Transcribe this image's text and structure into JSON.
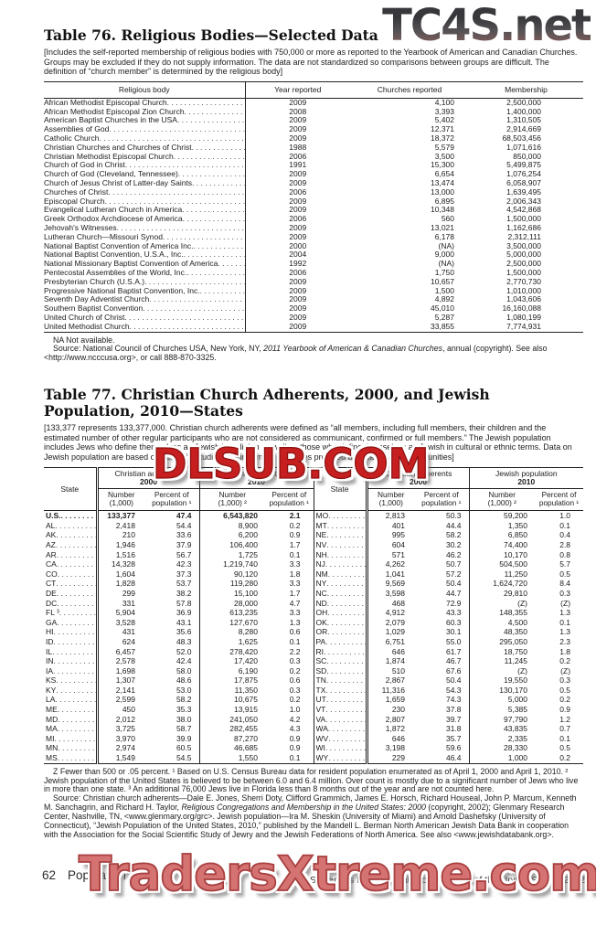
{
  "watermarks": {
    "top_right": "TC4S.net",
    "middle": "DLSUB.COM",
    "bottom": "TradersXtreme.com"
  },
  "table76": {
    "title": "Table 76. Religious Bodies—Selected Data",
    "note": "[Includes the self-reported membership of religious bodies with 750,000 or more as reported to the Yearbook of American and Canadian Churches. Groups may be excluded if they do not supply information. The data are not standardized so comparisons between groups are difficult. The definition of “church member” is determined by the religious body]",
    "columns": [
      "Religious body",
      "Year reported",
      "Churches reported",
      "Membership"
    ],
    "rows": [
      [
        "African Methodist Episcopal Church",
        "2009",
        "4,100",
        "2,500,000"
      ],
      [
        "African Methodist Episcopal Zion Church",
        "2008",
        "3,393",
        "1,400,000"
      ],
      [
        "American Baptist Churches in the USA",
        "2009",
        "5,402",
        "1,310,505"
      ],
      [
        "Assemblies of God",
        "2009",
        "12,371",
        "2,914,669"
      ],
      [
        "Catholic Church",
        "2009",
        "18,372",
        "68,503,456"
      ],
      [
        "Christian Churches and Churches of Christ",
        "1988",
        "5,579",
        "1,071,616"
      ],
      [
        "Christian Methodist Episcopal Church",
        "2006",
        "3,500",
        "850,000"
      ],
      [
        "Church of God in Christ",
        "1991",
        "15,300",
        "5,499,875"
      ],
      [
        "Church of God (Cleveland, Tennessee)",
        "2009",
        "6,654",
        "1,076,254"
      ],
      [
        "Church of Jesus Christ of Latter-day Saints",
        "2009",
        "13,474",
        "6,058,907"
      ],
      [
        "Churches of Christ",
        "2006",
        "13,000",
        "1,639,495"
      ],
      [
        "Episcopal Church",
        "2009",
        "6,895",
        "2,006,343"
      ],
      [
        "Evangelical Lutheran Church in America",
        "2009",
        "10,348",
        "4,542,868"
      ],
      [
        "Greek Orthodox Archdiocese of America",
        "2006",
        "560",
        "1,500,000"
      ],
      [
        "Jehovah's Witnesses",
        "2009",
        "13,021",
        "1,162,686"
      ],
      [
        "Lutheran Church—Missouri Synod",
        "2009",
        "6,178",
        "2,312,111"
      ],
      [
        "National Baptist Convention of America Inc.",
        "2000",
        "(NA)",
        "3,500,000"
      ],
      [
        "National Baptist Convention, U.S.A., Inc.",
        "2004",
        "9,000",
        "5,000,000"
      ],
      [
        "National Missionary Baptist Convention of America",
        "1992",
        "(NA)",
        "2,500,000"
      ],
      [
        "Pentecostal Assemblies of the World, Inc.",
        "2006",
        "1,750",
        "1,500,000"
      ],
      [
        "Presbyterian Church (U.S.A.)",
        "2009",
        "10,657",
        "2,770,730"
      ],
      [
        "Progressive National Baptist Convention, Inc.",
        "2009",
        "1,500",
        "1,010,000"
      ],
      [
        "Seventh Day Adventist Church",
        "2009",
        "4,892",
        "1,043,606"
      ],
      [
        "Southern Baptist Convention",
        "2009",
        "45,010",
        "16,160,088"
      ],
      [
        "United Church of Christ",
        "2009",
        "5,287",
        "1,080,199"
      ],
      [
        "United Methodist Church",
        "2009",
        "33,855",
        "7,774,931"
      ]
    ],
    "na_note": "NA Not available.",
    "source": [
      "Source: National Council of Churches USA, New York, NY, ",
      "2011 Yearbook of American & Canadian Churches",
      ", annual (copyright). See also <http://www.ncccusa.org>, or call 888-870-3325."
    ]
  },
  "table77": {
    "title": "Table 77. Christian Church Adherents, 2000, and Jewish Population, 2010—States",
    "note": "[133,377 represents 133,377,000. Christian church adherents were defined as “all members, including full members, their children and the estimated number of other regular participants who are not considered as communicant, confirmed or full members.” The Jewish population includes Jews who define themselves as Jewish by religion as well as those who define themselves as Jewish in cultural or ethnic terms. Data on Jewish population are based on scientific studies and informant estimates provided by local Jewish communities]",
    "header": {
      "state": "State",
      "christian": "Christian adherents",
      "jewish": "Jewish population",
      "y2000": "2000",
      "y2010": "2010",
      "subs": [
        "Number\n(1,000)",
        "Percent of\npopulation ¹",
        "Number\n(1,000) ²",
        "Percent of\npopulation ¹"
      ]
    },
    "left_rows": [
      [
        "U.S.",
        "133,377",
        "47.4",
        "6,543,820",
        "2.1"
      ],
      [
        "AL",
        "2,418",
        "54.4",
        "8,900",
        "0.2"
      ],
      [
        "AK",
        "210",
        "33.6",
        "6,200",
        "0.9"
      ],
      [
        "AZ",
        "1,946",
        "37.9",
        "106,400",
        "1.7"
      ],
      [
        "AR",
        "1,516",
        "56.7",
        "1,725",
        "0.1"
      ],
      [
        "CA",
        "14,328",
        "42.3",
        "1,219,740",
        "3.3"
      ],
      [
        "CO",
        "1,604",
        "37.3",
        "90,120",
        "1.8"
      ],
      [
        "CT",
        "1,828",
        "53.7",
        "119,280",
        "3.3"
      ],
      [
        "DE",
        "299",
        "38.2",
        "15,100",
        "1.7"
      ],
      [
        "DC",
        "331",
        "57.8",
        "28,000",
        "4.7"
      ],
      [
        "FL ³",
        "5,904",
        "36.9",
        "613,235",
        "3.3"
      ],
      [
        "GA",
        "3,528",
        "43.1",
        "127,670",
        "1.3"
      ],
      [
        "HI",
        "431",
        "35.6",
        "8,280",
        "0.6"
      ],
      [
        "ID",
        "624",
        "48.3",
        "1,625",
        "0.1"
      ],
      [
        "IL",
        "6,457",
        "52.0",
        "278,420",
        "2.2"
      ],
      [
        "IN",
        "2,578",
        "42.4",
        "17,420",
        "0.3"
      ],
      [
        "IA",
        "1,698",
        "58.0",
        "6,190",
        "0.2"
      ],
      [
        "KS",
        "1,307",
        "48.6",
        "17,875",
        "0.6"
      ],
      [
        "KY",
        "2,141",
        "53.0",
        "11,350",
        "0.3"
      ],
      [
        "LA",
        "2,599",
        "58.2",
        "10,675",
        "0.2"
      ],
      [
        "ME",
        "450",
        "35.3",
        "13,915",
        "1.0"
      ],
      [
        "MD",
        "2,012",
        "38.0",
        "241,050",
        "4.2"
      ],
      [
        "MA",
        "3,725",
        "58.7",
        "282,455",
        "4.3"
      ],
      [
        "MI",
        "3,970",
        "39.9",
        "87,270",
        "0.9"
      ],
      [
        "MN",
        "2,974",
        "60.5",
        "46,685",
        "0.9"
      ],
      [
        "MS",
        "1,549",
        "54.5",
        "1,550",
        "0.1"
      ]
    ],
    "right_rows": [
      [
        "MO",
        "2,813",
        "50.3",
        "59,200",
        "1.0"
      ],
      [
        "MT",
        "401",
        "44.4",
        "1,350",
        "0.1"
      ],
      [
        "NE",
        "995",
        "58.2",
        "6,850",
        "0.4"
      ],
      [
        "NV",
        "604",
        "30.2",
        "74,400",
        "2.8"
      ],
      [
        "NH",
        "571",
        "46.2",
        "10,170",
        "0.8"
      ],
      [
        "NJ",
        "4,262",
        "50.7",
        "504,500",
        "5.7"
      ],
      [
        "NM",
        "1,041",
        "57.2",
        "11,250",
        "0.5"
      ],
      [
        "NY",
        "9,569",
        "50.4",
        "1,624,720",
        "8.4"
      ],
      [
        "NC",
        "3,598",
        "44.7",
        "29,810",
        "0.3"
      ],
      [
        "ND",
        "468",
        "72.9",
        "(Z)",
        "(Z)"
      ],
      [
        "OH",
        "4,912",
        "43.3",
        "148,355",
        "1.3"
      ],
      [
        "OK",
        "2,079",
        "60.3",
        "4,500",
        "0.1"
      ],
      [
        "OR",
        "1,029",
        "30.1",
        "48,350",
        "1.3"
      ],
      [
        "PA",
        "6,751",
        "55.0",
        "295,050",
        "2.3"
      ],
      [
        "RI",
        "646",
        "61.7",
        "18,750",
        "1.8"
      ],
      [
        "SC",
        "1,874",
        "46.7",
        "11,245",
        "0.2"
      ],
      [
        "SD",
        "510",
        "67.6",
        "(Z)",
        "(Z)"
      ],
      [
        "TN",
        "2,867",
        "50.4",
        "19,550",
        "0.3"
      ],
      [
        "TX",
        "11,316",
        "54.3",
        "130,170",
        "0.5"
      ],
      [
        "UT",
        "1,659",
        "74.3",
        "5,000",
        "0.2"
      ],
      [
        "VT",
        "230",
        "37.8",
        "5,385",
        "0.9"
      ],
      [
        "VA",
        "2,807",
        "39.7",
        "97,790",
        "1.2"
      ],
      [
        "WA",
        "1,872",
        "31.8",
        "43,835",
        "0.7"
      ],
      [
        "WV",
        "646",
        "35.7",
        "2,335",
        "0.1"
      ],
      [
        "WI",
        "3,198",
        "59.6",
        "28,330",
        "0.5"
      ],
      [
        "WY",
        "229",
        "46.4",
        "1,000",
        "0.2"
      ]
    ],
    "footnote": "Z Fewer than 500 or .05 percent. ¹ Based on U.S. Census Bureau data for resident population enumerated as of April 1, 2000 and April 1, 2010. ² Jewish population of the United States is believed to be between 6.0 and 6.4 million. Over count is mostly due to a significant number of Jews who live in more than one state. ³ An additional 76,000 Jews live in Florida less than 8 months out of the year and are not counted here.",
    "source": [
      "Source: Christian church adherents—Dale E. Jones, Sherri Doty, Clifford Grammich, James E. Horsch, Richard Houseal, John P. Marcum, Kenneth M. Sanchagrin, and Richard H. Taylor, ",
      "Religious Congregations and Membership in the United States: 2000",
      " (copyright, 2002); Glenmary Research Center, Nashville, TN, <www.glenmary.org/grc>. Jewish population—Ira M. Sheskin (University of Miami) and Arnold Dashefsky (University of Connecticut), “Jewish Population of the United States, 2010,” published by the Mandell L. Berman North American Jewish Data Bank in cooperation with the Association for the Social Scientific Study of Jewry and the Jewish Federations of North America. See also <www.jewishdatabank.org>."
    ]
  },
  "footer": {
    "page": "62",
    "section": "Population",
    "right": "U.S. Census Bureau, Statistical Abstract of the United States: 2012"
  }
}
